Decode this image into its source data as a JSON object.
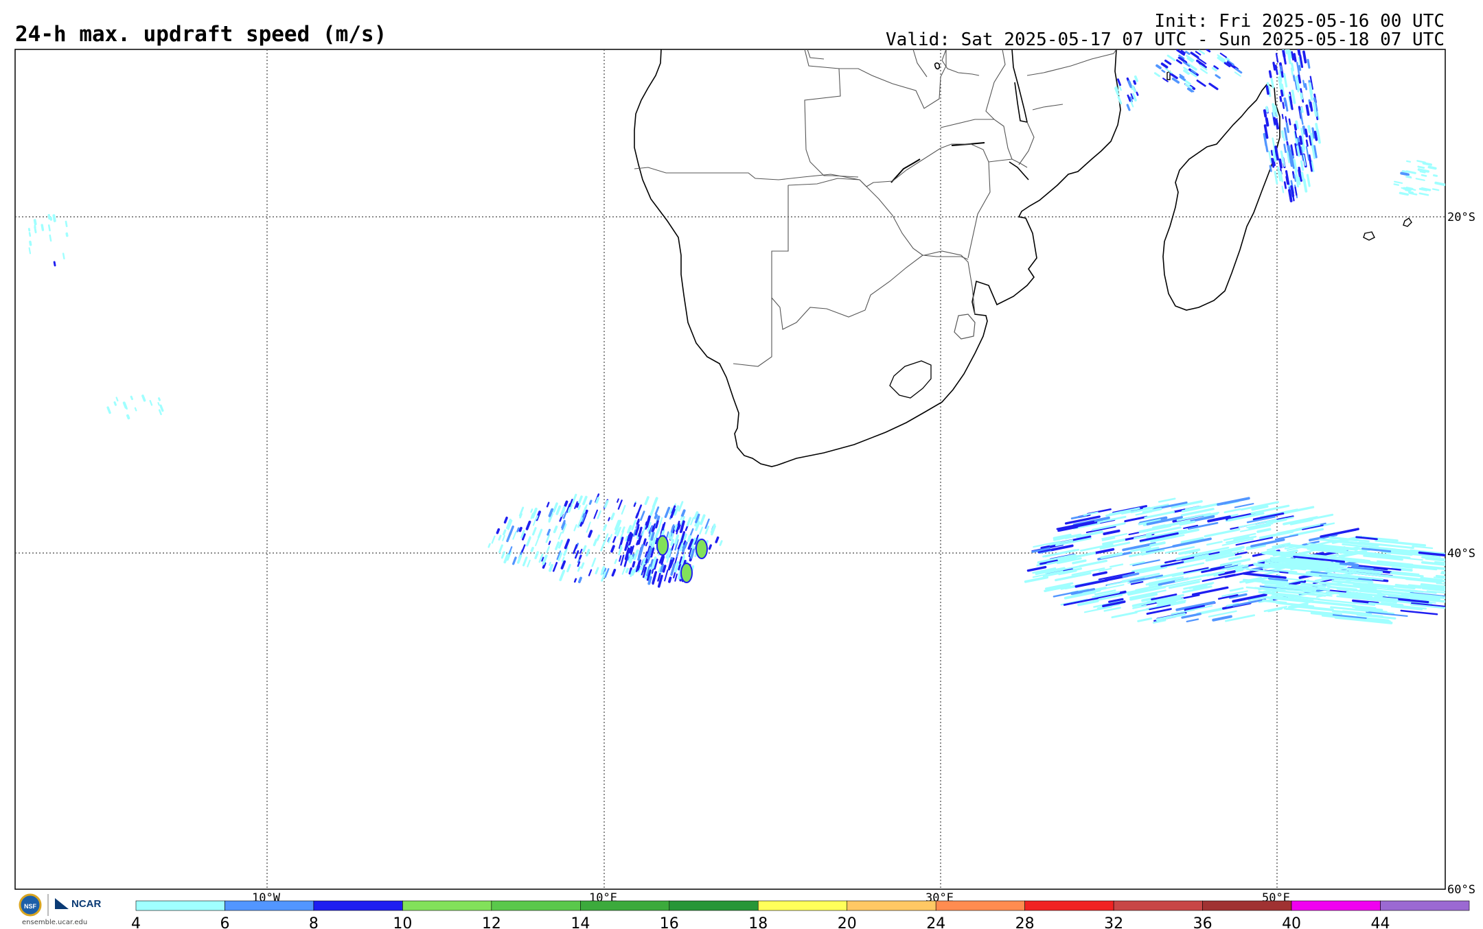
{
  "title": "24-h max. updraft speed (m/s)",
  "init": "Init: Fri 2025-05-16 00 UTC",
  "valid": "Valid: Sat 2025-05-17 07 UTC - Sun 2025-05-18 07 UTC",
  "lat_labels": [
    "20°S",
    "40°S",
    "60°S"
  ],
  "lon_labels": [
    "10°W",
    "10°E",
    "30°E",
    "50°E"
  ],
  "colorbar": {
    "ticks": [
      "4",
      "6",
      "8",
      "10",
      "12",
      "14",
      "16",
      "18",
      "20",
      "24",
      "28",
      "32",
      "36",
      "40",
      "44"
    ],
    "colors": [
      "#a0ffff",
      "#5296ff",
      "#1e1ef0",
      "#82e15a",
      "#5ac84b",
      "#3caa3c",
      "#279637",
      "#ffff5a",
      "#ffc864",
      "#ff8c50",
      "#f02323",
      "#c84646",
      "#a03232",
      "#f000f0",
      "#9b69d2"
    ]
  },
  "logo": {
    "org1": "NSF",
    "org2": "NCAR",
    "url": "ensemble.ucar.edu"
  }
}
